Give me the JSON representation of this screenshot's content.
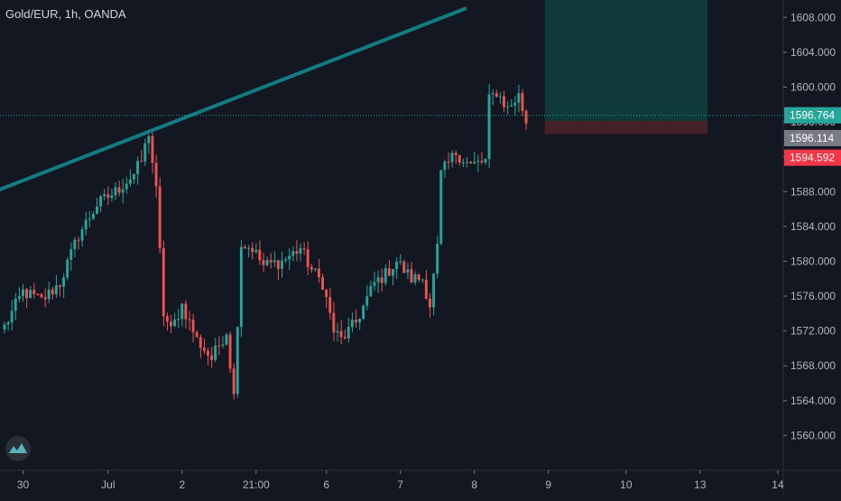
{
  "header": {
    "title": "Gold/EUR, 1h, OANDA"
  },
  "colors": {
    "background": "#131722",
    "up": "#26a69a",
    "down": "#ef5350",
    "trendline": "#137c82",
    "long_zone": "#0f3838",
    "short_zone": "#432126",
    "axis_text": "#b2b5be",
    "last_price_label": "#26a69a",
    "entry_label": "#787b86",
    "stop_label": "#f23645"
  },
  "chart_data": {
    "type": "candlestick",
    "title": "Gold/EUR, 1h, OANDA",
    "ylim": [
      1556,
      1610
    ],
    "y_ticks": [
      1560.0,
      1564.0,
      1568.0,
      1572.0,
      1576.0,
      1580.0,
      1584.0,
      1588.0,
      1592.0,
      1596.0,
      1600.0,
      1604.0,
      1608.0
    ],
    "y_tick_labels": [
      "1560.000",
      "1564.000",
      "1568.000",
      "1572.000",
      "1576.000",
      "1580.000",
      "1584.000",
      "1588.000",
      "1592.000",
      "1596.000",
      "1600.000",
      "1604.000",
      "1608.000"
    ],
    "x_tick_labels": [
      "30",
      "Jul",
      "2",
      "21:00",
      "6",
      "7",
      "8",
      "9",
      "10",
      "13",
      "14"
    ],
    "x_tick_bars": [
      5,
      28,
      48,
      68,
      87,
      107,
      127,
      147,
      168,
      188,
      209
    ],
    "price_labels": {
      "last": "1596.764",
      "entry": "1596.114",
      "stop": "1594.592"
    },
    "price_levels": {
      "last": 1596.764,
      "entry": 1596.114,
      "stop": 1594.592
    },
    "trendline": {
      "start_bar": -1,
      "start_price": 1588.2,
      "end_bar": 125,
      "end_price": 1609.0
    },
    "position": {
      "start_bar": 146.5,
      "end_bar": 190.5,
      "target_price": 1611.0
    },
    "anchors": [
      [
        0,
        1572.5
      ],
      [
        5,
        1576.5
      ],
      [
        10,
        1575.5
      ],
      [
        15,
        1577.5
      ],
      [
        20,
        1583.0
      ],
      [
        25,
        1586.5
      ],
      [
        30,
        1588.0
      ],
      [
        35,
        1590.0
      ],
      [
        37,
        1591.5
      ],
      [
        39,
        1594.8
      ],
      [
        41,
        1588.0
      ],
      [
        43,
        1574.0
      ],
      [
        45,
        1572.0
      ],
      [
        48,
        1575.0
      ],
      [
        52,
        1571.0
      ],
      [
        56,
        1568.8
      ],
      [
        60,
        1572.0
      ],
      [
        62,
        1564.5
      ],
      [
        64,
        1582.0
      ],
      [
        67,
        1581.5
      ],
      [
        70,
        1579.5
      ],
      [
        75,
        1580.0
      ],
      [
        80,
        1581.5
      ],
      [
        83,
        1579.0
      ],
      [
        86,
        1577.5
      ],
      [
        89,
        1572.0
      ],
      [
        91,
        1571.0
      ],
      [
        95,
        1573.0
      ],
      [
        100,
        1577.5
      ],
      [
        103,
        1578.5
      ],
      [
        106,
        1580.0
      ],
      [
        110,
        1578.0
      ],
      [
        113,
        1578.0
      ],
      [
        115,
        1575.0
      ],
      [
        117,
        1581.5
      ],
      [
        118,
        1590.0
      ],
      [
        122,
        1592.5
      ],
      [
        126,
        1591.0
      ],
      [
        130,
        1591.5
      ],
      [
        131,
        1598.5
      ],
      [
        133,
        1599.5
      ],
      [
        136,
        1597.5
      ],
      [
        139,
        1599.0
      ],
      [
        141,
        1596.0
      ]
    ]
  }
}
